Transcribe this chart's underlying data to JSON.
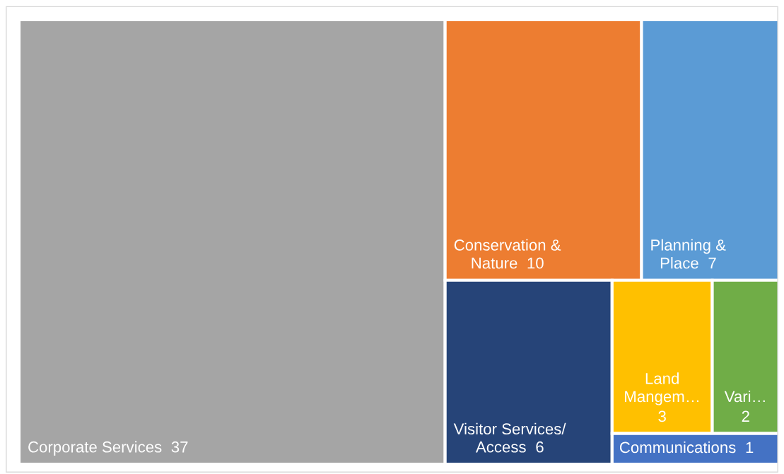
{
  "chart_data": {
    "type": "other",
    "categories": [
      "Corporate Services",
      "Conservation &\nNature",
      "Planning &\nPlace",
      "Visitor Services/\nAccess",
      "Land\nMangem…",
      "Vari…",
      "Communications"
    ],
    "values": [
      37,
      10,
      7,
      6,
      3,
      2,
      1
    ],
    "colors": [
      "#a5a5a5",
      "#ed7d31",
      "#5b9bd5",
      "#264478",
      "#ffc000",
      "#70ad47",
      "#4472c4"
    ],
    "data_labels": true
  }
}
